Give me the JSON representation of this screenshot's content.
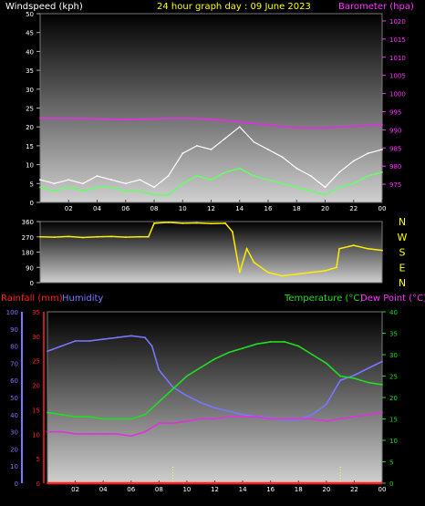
{
  "header": {
    "title": "24 hour graph day : 09 June 2023",
    "wind_label": "Windspeed (kph)",
    "baro_label": "Barometer (hpa)"
  },
  "bottom_header": {
    "rain_label": "Rainfall (mm)",
    "humidity_label": "Humidity",
    "temp_label": "Temperature (°C)",
    "dew_label": "Dew Point (°C)"
  },
  "compass": [
    "N",
    "W",
    "S",
    "E",
    "N"
  ],
  "x_ticks": [
    "02",
    "04",
    "06",
    "08",
    "10",
    "12",
    "14",
    "16",
    "18",
    "20",
    "22",
    "00"
  ],
  "colors": {
    "wind_avg": "#66ff66",
    "wind_gust": "#ffffff",
    "barometer": "#dd33dd",
    "direction": "#ffee00",
    "humidity": "#7777ff",
    "temperature": "#22dd22",
    "dewpoint": "#dd33dd",
    "rainfall": "#ff2222"
  },
  "chart_data": [
    {
      "type": "line",
      "x_unit": "hour",
      "xlim": [
        0,
        24
      ],
      "ylim_left": [
        0,
        50
      ],
      "ylim_right": [
        970,
        1022
      ],
      "y_ticks_left": [
        0,
        5,
        10,
        15,
        20,
        25,
        30,
        35,
        40,
        45,
        50
      ],
      "y_ticks_right": [
        975,
        980,
        985,
        990,
        995,
        1000,
        1005,
        1010,
        1015,
        1020
      ],
      "series": [
        {
          "name": "Windspeed (kph)",
          "axis": "left",
          "x": [
            0,
            1,
            2,
            3,
            4,
            5,
            6,
            7,
            8,
            9,
            10,
            11,
            12,
            13,
            14,
            15,
            16,
            17,
            18,
            19,
            20,
            21,
            22,
            23,
            24
          ],
          "y": [
            4,
            3,
            4,
            3,
            4,
            4,
            3,
            3,
            2,
            2,
            5,
            7,
            6,
            8,
            9,
            7,
            6,
            5,
            4,
            3,
            2,
            4,
            5,
            7,
            8
          ]
        },
        {
          "name": "Gust",
          "axis": "left",
          "x": [
            0,
            1,
            2,
            3,
            4,
            5,
            6,
            7,
            8,
            9,
            10,
            11,
            12,
            13,
            14,
            15,
            16,
            17,
            18,
            19,
            20,
            21,
            22,
            23,
            24
          ],
          "y": [
            6,
            5,
            6,
            5,
            7,
            6,
            5,
            6,
            4,
            7,
            13,
            15,
            14,
            17,
            20,
            16,
            14,
            12,
            9,
            7,
            4,
            8,
            11,
            13,
            14
          ]
        },
        {
          "name": "Barometer (hpa)",
          "axis": "right",
          "x": [
            0,
            2,
            4,
            6,
            8,
            10,
            12,
            14,
            16,
            18,
            20,
            22,
            24
          ],
          "y": [
            993.2,
            993.1,
            993.0,
            992.8,
            993.0,
            993.2,
            992.9,
            992.2,
            991.3,
            990.6,
            990.5,
            991.0,
            991.4
          ]
        }
      ]
    },
    {
      "type": "line",
      "x_unit": "hour",
      "xlim": [
        0,
        24
      ],
      "ylim": [
        0,
        360
      ],
      "y_ticks": [
        0,
        90,
        180,
        270,
        360
      ],
      "series": [
        {
          "name": "Wind direction",
          "x": [
            0,
            1,
            2,
            3,
            4,
            5,
            6,
            7,
            7.6,
            8,
            9,
            10,
            11,
            12,
            13,
            13.5,
            14,
            14.5,
            15,
            16,
            17,
            18,
            19,
            20,
            20.8,
            21,
            22,
            23,
            24
          ],
          "y": [
            270,
            268,
            272,
            266,
            270,
            272,
            268,
            270,
            270,
            350,
            355,
            350,
            352,
            348,
            350,
            300,
            60,
            200,
            120,
            60,
            40,
            50,
            60,
            70,
            90,
            200,
            220,
            200,
            190
          ]
        }
      ]
    },
    {
      "type": "line",
      "x_unit": "hour",
      "xlim": [
        0,
        24
      ],
      "ylim_rain": [
        0,
        35
      ],
      "ylim_humidity": [
        0,
        100
      ],
      "ylim_temp": [
        0,
        40
      ],
      "y_ticks_rain": [
        0,
        5,
        10,
        15,
        20,
        25,
        30,
        35
      ],
      "y_ticks_humidity": [
        0,
        10,
        20,
        30,
        40,
        50,
        60,
        70,
        80,
        90,
        100
      ],
      "y_ticks_temp": [
        0,
        5,
        10,
        15,
        20,
        25,
        30,
        35,
        40
      ],
      "series": [
        {
          "name": "Humidity",
          "axis": "humidity",
          "x": [
            0,
            1,
            2,
            3,
            4,
            5,
            6,
            7,
            7.5,
            8,
            9,
            10,
            11,
            12,
            13,
            14,
            15,
            16,
            17,
            18,
            19,
            20,
            21,
            22,
            23,
            24
          ],
          "y": [
            77,
            80,
            83,
            83,
            84,
            85,
            86,
            85,
            80,
            66,
            56,
            51,
            47,
            44,
            42,
            40,
            39,
            38,
            37,
            37,
            40,
            46,
            60,
            63,
            67,
            71
          ]
        },
        {
          "name": "Temperature (°C)",
          "axis": "temp",
          "x": [
            0,
            1,
            2,
            3,
            4,
            5,
            6,
            7,
            8,
            9,
            10,
            11,
            12,
            13,
            14,
            15,
            16,
            17,
            18,
            19,
            20,
            21,
            22,
            23,
            24
          ],
          "y": [
            16.5,
            16,
            15.5,
            15.5,
            15,
            15,
            15,
            16,
            19,
            22,
            25,
            27,
            29,
            30.5,
            31.5,
            32.5,
            33,
            33,
            32,
            30,
            28,
            25,
            24.5,
            23.5,
            23
          ]
        },
        {
          "name": "Dew Point (°C)",
          "axis": "temp",
          "x": [
            0,
            1,
            2,
            3,
            4,
            5,
            6,
            7,
            8,
            9,
            10,
            11,
            12,
            13,
            14,
            15,
            16,
            17,
            18,
            19,
            20,
            21,
            22,
            23,
            24
          ],
          "y": [
            12,
            12,
            11.5,
            11.5,
            11.5,
            11.5,
            11,
            12,
            14,
            14,
            14.5,
            15,
            15,
            15.5,
            15.5,
            15.5,
            15,
            15,
            15,
            15,
            14.5,
            15,
            15.5,
            16,
            16.5
          ]
        },
        {
          "name": "Rainfall (mm)",
          "axis": "rain",
          "x": [
            0,
            24
          ],
          "y": [
            0,
            0
          ]
        }
      ]
    }
  ]
}
